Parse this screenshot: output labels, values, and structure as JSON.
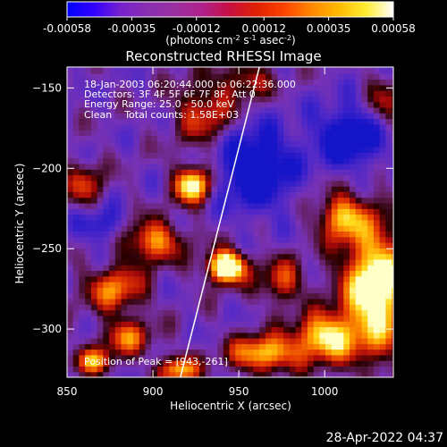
{
  "colorbar": {
    "ticks": [
      "-0.00058",
      "-0.00035",
      "-0.00012",
      "0.00012",
      "0.00035",
      "0.00058"
    ],
    "tick_values": [
      -0.00058,
      -0.00035,
      -0.00012,
      0.00012,
      0.00035,
      0.00058
    ],
    "range": [
      -0.00058,
      0.00058
    ],
    "unit_pre": "(photons cm",
    "unit_sup1": "-2",
    "unit_mid": " s",
    "unit_sup2": "-1",
    "unit_post": " asec",
    "unit_sup3": "-2",
    "unit_close": ")",
    "colors": [
      "#0000ff",
      "#3300ff",
      "#7722cc",
      "#8a2fb0",
      "#9b30a0",
      "#b0208a",
      "#c81040",
      "#e02000",
      "#ff4400",
      "#ff8800",
      "#ffbb00",
      "#ffee33",
      "#ffffff"
    ]
  },
  "chart_data": {
    "type": "heatmap",
    "title": "Reconstructed RHESSI Image",
    "xlabel": "Heliocentric X (arcsec)",
    "ylabel": "Heliocentric Y (arcsec)",
    "xlim": [
      850,
      1040
    ],
    "ylim": [
      -330,
      -137
    ],
    "xticks": [
      850,
      900,
      950,
      1000
    ],
    "yticks": [
      -150,
      -200,
      -250,
      -300
    ],
    "limb_line": [
      [
        916,
        -330
      ],
      [
        962,
        -137
      ]
    ],
    "peak": [
      943,
      -261
    ],
    "blobs": [
      {
        "x": 943,
        "y": -261,
        "amp": 1.0,
        "sx": 8,
        "sy": 7
      },
      {
        "x": 923,
        "y": -210,
        "amp": 0.8,
        "sx": 7,
        "sy": 8
      },
      {
        "x": 1030,
        "y": -275,
        "amp": 0.85,
        "sx": 14,
        "sy": 28
      },
      {
        "x": 1000,
        "y": -305,
        "amp": 0.7,
        "sx": 12,
        "sy": 10
      },
      {
        "x": 965,
        "y": -315,
        "amp": 0.65,
        "sx": 14,
        "sy": 8
      },
      {
        "x": 900,
        "y": -245,
        "amp": 0.55,
        "sx": 12,
        "sy": 9
      },
      {
        "x": 878,
        "y": -275,
        "amp": 0.5,
        "sx": 12,
        "sy": 10
      },
      {
        "x": 885,
        "y": -305,
        "amp": 0.45,
        "sx": 10,
        "sy": 8
      },
      {
        "x": 930,
        "y": -165,
        "amp": 0.4,
        "sx": 12,
        "sy": 14
      },
      {
        "x": 1010,
        "y": -230,
        "amp": 0.55,
        "sx": 10,
        "sy": 10
      },
      {
        "x": 975,
        "y": -270,
        "amp": 0.4,
        "sx": 9,
        "sy": 10
      },
      {
        "x": 860,
        "y": -210,
        "amp": 0.35,
        "sx": 8,
        "sy": 10
      },
      {
        "x": 1035,
        "y": -160,
        "amp": 0.3,
        "sx": 8,
        "sy": 12
      },
      {
        "x": 955,
        "y": -145,
        "amp": 0.35,
        "sx": 10,
        "sy": 8
      },
      {
        "x": 865,
        "y": -320,
        "amp": 0.5,
        "sx": 8,
        "sy": 6
      },
      {
        "x": 915,
        "y": -325,
        "amp": 0.6,
        "sx": 8,
        "sy": 6
      },
      {
        "x": 960,
        "y": -200,
        "amp": -0.5,
        "sx": 15,
        "sy": 18
      },
      {
        "x": 1015,
        "y": -180,
        "amp": -0.45,
        "sx": 15,
        "sy": 14
      },
      {
        "x": 870,
        "y": -235,
        "amp": -0.3,
        "sx": 10,
        "sy": 8
      }
    ]
  },
  "annotations": {
    "line1": "18-Jan-2003 06:20:44.000 to 06:22:36.000",
    "line2": "Detectors: 3F 4F 5F 6F 7F 8F, Att 0",
    "line3": "Energy Range: 25.0 - 50.0 keV",
    "line4": "Clean    Total counts: 1.58E+03",
    "peak": "Position of Peak = [943,-261]"
  },
  "footer": {
    "timestamp": "28-Apr-2022 04:37"
  }
}
